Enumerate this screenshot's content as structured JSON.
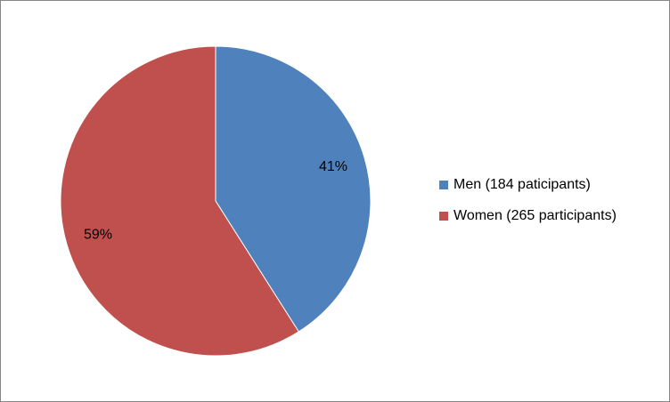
{
  "chart_data": {
    "type": "pie",
    "categories": [
      "Men (184 paticipants)",
      "Women (265 participants)"
    ],
    "values": [
      41,
      59
    ],
    "value_labels": [
      "41%",
      "59%"
    ],
    "colors": [
      "#4f81bd",
      "#c0504d"
    ],
    "legend": "right"
  }
}
